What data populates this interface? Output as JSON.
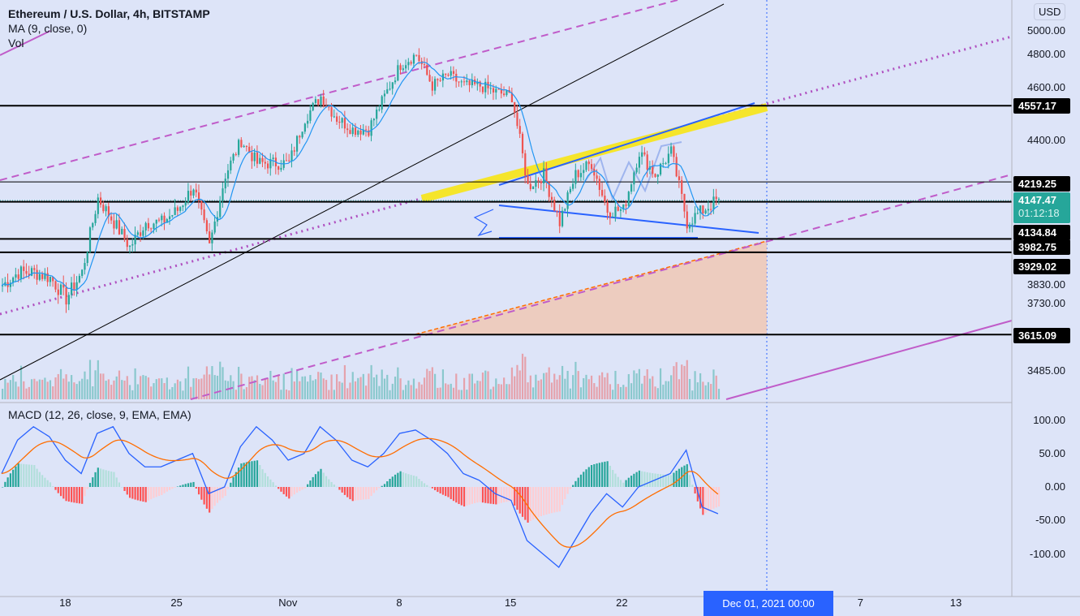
{
  "header": {
    "title": "Ethereum / U.S. Dollar, 4h, BITSTAMP",
    "ma": "MA (9, close, 0)",
    "vol": "Vol",
    "currency": "USD"
  },
  "macd_legend": "MACD (12, 26, close, 9, EMA, EMA)",
  "price_axis": [
    {
      "label": "5000.00",
      "price": 5000
    },
    {
      "label": "4800.00",
      "price": 4800
    },
    {
      "label": "4600.00",
      "price": 4600
    },
    {
      "label": "4400.00",
      "price": 4400
    },
    {
      "label": "3830.00",
      "price": 3830
    },
    {
      "label": "3730.00",
      "price": 3730
    },
    {
      "label": "3485.00",
      "price": 3485
    }
  ],
  "price_tags": [
    {
      "label": "4557.17",
      "price": 4557.17
    },
    {
      "label": "4219.25",
      "price": 4219.25
    },
    {
      "label": "4134.84",
      "price": 4134.84
    },
    {
      "label": "3982.75",
      "price": 3982.75
    },
    {
      "label": "3929.02",
      "price": 3929.02
    },
    {
      "label": "3615.09",
      "price": 3615.09
    }
  ],
  "current": {
    "price": "4147.47",
    "countdown": "01:12:18",
    "color": "#26a69a"
  },
  "macd_axis": [
    {
      "label": "100.00",
      "v": 100
    },
    {
      "label": "50.00",
      "v": 50
    },
    {
      "label": "0.00",
      "v": 0
    },
    {
      "label": "-50.00",
      "v": -50
    },
    {
      "label": "-100.00",
      "v": -100
    }
  ],
  "time_axis": [
    {
      "label": "18",
      "day": 4
    },
    {
      "label": "25",
      "day": 11
    },
    {
      "label": "Nov",
      "day": 18
    },
    {
      "label": "8",
      "day": 25
    },
    {
      "label": "15",
      "day": 32
    },
    {
      "label": "22",
      "day": 39
    },
    {
      "label": "7",
      "day": 54
    },
    {
      "label": "13",
      "day": 60
    }
  ],
  "crosshair_date": "Dec 01, 2021   00:00",
  "chart_data": {
    "type": "candlestick",
    "title": "Ethereum / U.S. Dollar, 4h, BITSTAMP",
    "x_start": "Oct 14",
    "x_unit": "day",
    "daily_close": [
      3800,
      3850,
      3850,
      3830,
      3750,
      3850,
      4150,
      4050,
      3950,
      4050,
      4050,
      4100,
      4200,
      3950,
      4250,
      4400,
      4300,
      4300,
      4300,
      4500,
      4600,
      4500,
      4450,
      4450,
      4600,
      4750,
      4800,
      4650,
      4700,
      4650,
      4650,
      4620,
      4600,
      4200,
      4250,
      4050,
      4250,
      4300,
      4100,
      4100,
      4350,
      4250,
      4350,
      4050,
      4100,
      4147
    ],
    "macd_daily": [
      20,
      70,
      90,
      75,
      40,
      20,
      80,
      90,
      50,
      30,
      30,
      40,
      50,
      -10,
      0,
      60,
      90,
      70,
      40,
      50,
      90,
      70,
      40,
      30,
      50,
      80,
      85,
      70,
      50,
      20,
      10,
      -10,
      -20,
      -80,
      -100,
      -120,
      -80,
      -40,
      -10,
      -30,
      0,
      10,
      20,
      55,
      -30,
      -40
    ],
    "horizontal_levels": [
      4557.17,
      4219.25,
      4134.84,
      3982.75,
      3929.02,
      3615.09
    ],
    "ylim": [
      3440,
      5000
    ],
    "yscale": "log",
    "colors": {
      "up": "#26a69a",
      "down": "#ef5350",
      "macd": "#2962ff",
      "signal": "#ff6d00"
    }
  }
}
